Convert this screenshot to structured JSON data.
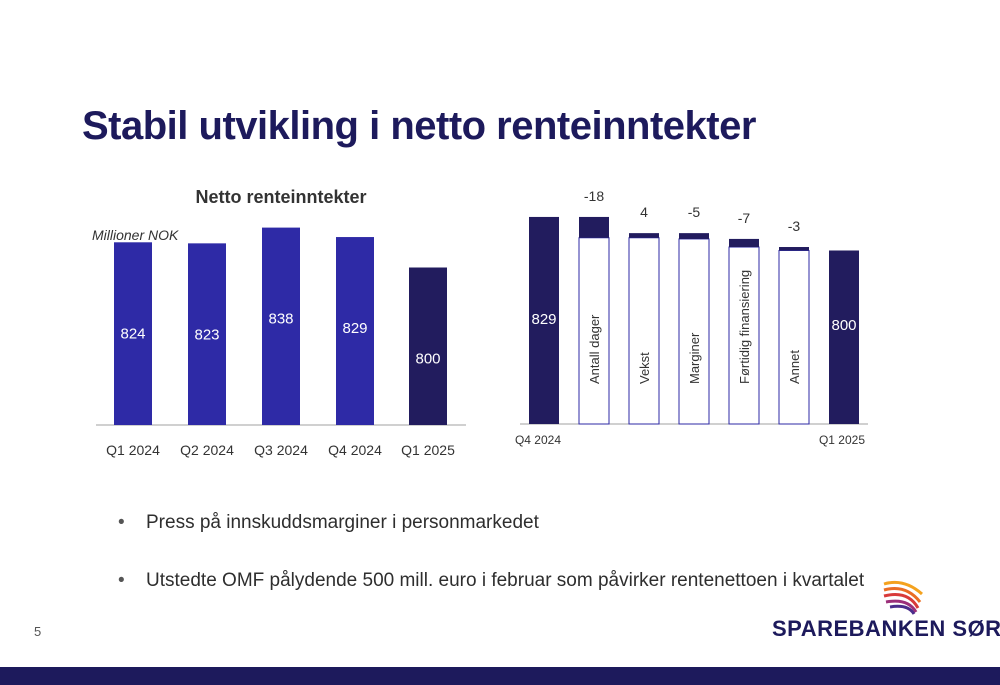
{
  "slide": {
    "title": "Stabil utvikling i netto renteinntekter",
    "page_number": "5",
    "bullets": [
      "Press på innskuddsmarginer i personmarkedet",
      "Utstedte OMF pålydende 500 mill. euro i februar som påvirker rentenettoen i kvartalet"
    ],
    "logo_text": "SPAREBANKEN SØR"
  },
  "colors": {
    "bar": "#2e2aa6",
    "bar_dark": "#221c5e",
    "axis": "#a0a0a0",
    "text": "#333333"
  },
  "chart_data": [
    {
      "type": "bar",
      "title": "Netto renteinntekter",
      "unit_label": "Millioner NOK",
      "categories": [
        "Q1 2024",
        "Q2 2024",
        "Q3 2024",
        "Q4 2024",
        "Q1 2025"
      ],
      "values": [
        824,
        823,
        838,
        829,
        800
      ],
      "highlight_last": true,
      "ylim": [
        650,
        850
      ],
      "grid": false
    },
    {
      "type": "waterfall",
      "start": {
        "label": "Q4 2024",
        "value": 829
      },
      "steps": [
        {
          "name": "Antall dager",
          "value": -18
        },
        {
          "name": "Vekst",
          "value": 4
        },
        {
          "name": "Marginer",
          "value": -5
        },
        {
          "name": "Førtidig finansiering",
          "value": -7
        },
        {
          "name": "Annet",
          "value": -3
        }
      ],
      "end": {
        "label": "Q1 2025",
        "value": 800
      },
      "ylim": [
        650,
        835
      ],
      "grid": false
    }
  ]
}
